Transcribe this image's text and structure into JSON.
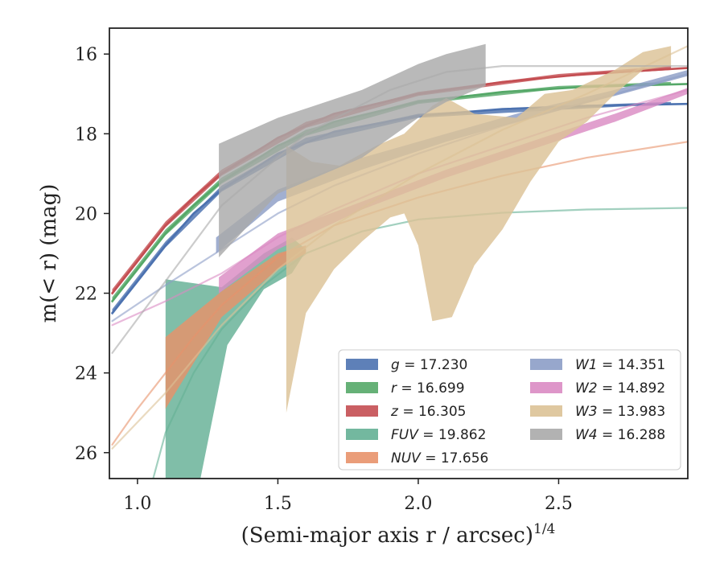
{
  "chart_data": {
    "type": "line",
    "xlabel": "(Semi-major axis r / arcsec)",
    "xlabel_sup": "1/4",
    "ylabel": "m(< r) (mag)",
    "xlim": [
      0.9,
      2.96
    ],
    "ylim": [
      26.65,
      15.35
    ],
    "xticks": [
      1.0,
      1.5,
      2.0,
      2.5
    ],
    "xtick_labels": [
      "1.0",
      "1.5",
      "2.0",
      "2.5"
    ],
    "yticks": [
      16,
      18,
      20,
      22,
      24,
      26
    ],
    "ytick_labels": [
      "16",
      "18",
      "20",
      "22",
      "24",
      "26"
    ],
    "legend_position": "lower-right",
    "series": [
      {
        "name": "g = 17.230",
        "var": "g",
        "val": "17.230",
        "color": "#4c72b0",
        "curve": [
          [
            0.91,
            22.5
          ],
          [
            1.0,
            21.7
          ],
          [
            1.1,
            20.8
          ],
          [
            1.2,
            20.0
          ],
          [
            1.3,
            19.4
          ],
          [
            1.5,
            18.5
          ],
          [
            1.7,
            17.95
          ],
          [
            2.0,
            17.55
          ],
          [
            2.3,
            17.38
          ],
          [
            2.6,
            17.3
          ],
          [
            2.96,
            17.25
          ]
        ],
        "band_upper": [
          [
            0.91,
            22.4
          ],
          [
            1.1,
            20.7
          ],
          [
            1.3,
            19.3
          ],
          [
            1.6,
            18.1
          ],
          [
            2.0,
            17.5
          ],
          [
            2.5,
            17.3
          ],
          [
            2.9,
            17.2
          ]
        ],
        "band_lower": [
          [
            0.91,
            22.55
          ],
          [
            1.1,
            20.85
          ],
          [
            1.3,
            19.45
          ],
          [
            1.6,
            18.25
          ],
          [
            2.0,
            17.6
          ],
          [
            2.5,
            17.4
          ],
          [
            2.9,
            17.25
          ]
        ]
      },
      {
        "name": "r = 16.699",
        "var": "r",
        "val": "16.699",
        "color": "#55a868",
        "curve": [
          [
            0.91,
            22.2
          ],
          [
            1.0,
            21.4
          ],
          [
            1.1,
            20.5
          ],
          [
            1.2,
            19.8
          ],
          [
            1.3,
            19.2
          ],
          [
            1.5,
            18.3
          ],
          [
            1.7,
            17.7
          ],
          [
            2.0,
            17.2
          ],
          [
            2.3,
            16.95
          ],
          [
            2.6,
            16.82
          ],
          [
            2.96,
            16.75
          ]
        ],
        "band_upper": [
          [
            0.91,
            22.1
          ],
          [
            1.1,
            20.4
          ],
          [
            1.3,
            19.1
          ],
          [
            1.6,
            17.9
          ],
          [
            2.0,
            17.15
          ],
          [
            2.5,
            16.8
          ],
          [
            2.9,
            16.7
          ]
        ],
        "band_lower": [
          [
            0.91,
            22.25
          ],
          [
            1.1,
            20.55
          ],
          [
            1.3,
            19.25
          ],
          [
            1.6,
            18.05
          ],
          [
            2.0,
            17.25
          ],
          [
            2.5,
            16.88
          ],
          [
            2.9,
            16.78
          ]
        ]
      },
      {
        "name": "z = 16.305",
        "var": "z",
        "val": "16.305",
        "color": "#c44e52",
        "curve": [
          [
            0.91,
            22.0
          ],
          [
            1.0,
            21.2
          ],
          [
            1.1,
            20.3
          ],
          [
            1.2,
            19.6
          ],
          [
            1.3,
            19.0
          ],
          [
            1.5,
            18.1
          ],
          [
            1.7,
            17.5
          ],
          [
            2.0,
            17.0
          ],
          [
            2.3,
            16.7
          ],
          [
            2.6,
            16.5
          ],
          [
            2.96,
            16.35
          ]
        ],
        "band_upper": [
          [
            0.91,
            21.9
          ],
          [
            1.1,
            20.2
          ],
          [
            1.3,
            18.9
          ],
          [
            1.6,
            17.7
          ],
          [
            2.0,
            16.95
          ],
          [
            2.5,
            16.5
          ],
          [
            2.9,
            16.3
          ]
        ],
        "band_lower": [
          [
            0.91,
            22.05
          ],
          [
            1.1,
            20.35
          ],
          [
            1.3,
            19.05
          ],
          [
            1.6,
            17.85
          ],
          [
            2.0,
            17.05
          ],
          [
            2.5,
            16.58
          ],
          [
            2.9,
            16.4
          ]
        ]
      },
      {
        "name": "FUV = 19.862",
        "var": "FUV",
        "val": "19.862",
        "color": "#64b095",
        "curve": [
          [
            1.05,
            26.8
          ],
          [
            1.1,
            25.5
          ],
          [
            1.2,
            24.0
          ],
          [
            1.3,
            22.9
          ],
          [
            1.45,
            21.8
          ],
          [
            1.6,
            21.0
          ],
          [
            1.8,
            20.45
          ],
          [
            2.0,
            20.15
          ],
          [
            2.3,
            19.98
          ],
          [
            2.6,
            19.9
          ],
          [
            2.96,
            19.86
          ]
        ],
        "band_upper": [
          [
            1.1,
            21.65
          ],
          [
            1.3,
            21.85
          ],
          [
            1.45,
            21.0
          ],
          [
            1.55,
            20.6
          ],
          [
            1.6,
            20.9
          ]
        ],
        "band_lower": [
          [
            1.1,
            26.8
          ],
          [
            1.22,
            26.8
          ],
          [
            1.32,
            23.3
          ],
          [
            1.45,
            21.9
          ],
          [
            1.55,
            21.5
          ],
          [
            1.6,
            20.95
          ]
        ]
      },
      {
        "name": "NUV = 17.656",
        "var": "NUV",
        "val": "17.656",
        "color": "#e8926a",
        "curve": [
          [
            0.91,
            25.8
          ],
          [
            1.0,
            24.9
          ],
          [
            1.1,
            24.0
          ],
          [
            1.2,
            23.1
          ],
          [
            1.3,
            22.3
          ],
          [
            1.5,
            21.1
          ],
          [
            1.7,
            20.3
          ],
          [
            2.0,
            19.6
          ],
          [
            2.3,
            19.05
          ],
          [
            2.6,
            18.6
          ],
          [
            2.96,
            18.2
          ]
        ],
        "band_upper": [
          [
            1.1,
            23.1
          ],
          [
            1.3,
            21.95
          ],
          [
            1.5,
            21.0
          ],
          [
            1.6,
            20.8
          ]
        ],
        "band_lower": [
          [
            1.1,
            24.9
          ],
          [
            1.3,
            22.6
          ],
          [
            1.5,
            21.4
          ],
          [
            1.6,
            21.0
          ]
        ]
      },
      {
        "name": "W1 = 14.351",
        "var": "W1",
        "val": "14.351",
        "color": "#8c9dc6",
        "curve": [
          [
            0.91,
            22.7
          ],
          [
            1.1,
            21.8
          ],
          [
            1.3,
            20.9
          ],
          [
            1.5,
            20.0
          ],
          [
            1.7,
            19.3
          ],
          [
            2.0,
            18.5
          ],
          [
            2.3,
            17.8
          ],
          [
            2.6,
            17.2
          ],
          [
            2.96,
            16.5
          ]
        ],
        "band_upper": [
          [
            1.28,
            20.6
          ],
          [
            1.5,
            19.4
          ],
          [
            1.8,
            18.6
          ],
          [
            2.1,
            18.0
          ],
          [
            2.4,
            17.4
          ],
          [
            2.7,
            16.9
          ],
          [
            2.96,
            16.4
          ]
        ],
        "band_lower": [
          [
            1.28,
            21.0
          ],
          [
            1.5,
            19.7
          ],
          [
            1.8,
            18.9
          ],
          [
            2.1,
            18.2
          ],
          [
            2.4,
            17.6
          ],
          [
            2.7,
            17.05
          ],
          [
            2.96,
            16.55
          ]
        ]
      },
      {
        "name": "W2 = 14.892",
        "var": "W2",
        "val": "14.892",
        "color": "#da8bc3",
        "curve": [
          [
            0.91,
            22.8
          ],
          [
            1.1,
            22.2
          ],
          [
            1.3,
            21.5
          ],
          [
            1.5,
            20.6
          ],
          [
            1.7,
            19.9
          ],
          [
            2.0,
            19.0
          ],
          [
            2.3,
            18.3
          ],
          [
            2.6,
            17.6
          ],
          [
            2.96,
            16.9
          ]
        ],
        "band_upper": [
          [
            1.29,
            21.6
          ],
          [
            1.5,
            20.5
          ],
          [
            1.8,
            19.7
          ],
          [
            2.1,
            18.9
          ],
          [
            2.4,
            18.2
          ],
          [
            2.7,
            17.5
          ],
          [
            2.96,
            16.85
          ]
        ],
        "band_lower": [
          [
            1.29,
            22.0
          ],
          [
            1.5,
            20.9
          ],
          [
            1.8,
            19.9
          ],
          [
            2.1,
            19.1
          ],
          [
            2.4,
            18.4
          ],
          [
            2.7,
            17.7
          ],
          [
            2.96,
            17.0
          ]
        ]
      },
      {
        "name": "W3 = 13.983",
        "var": "W3",
        "val": "13.983",
        "color": "#dcc296",
        "curve": [
          [
            0.91,
            25.9
          ],
          [
            1.1,
            24.5
          ],
          [
            1.3,
            22.8
          ],
          [
            1.5,
            21.4
          ],
          [
            1.7,
            20.3
          ],
          [
            2.0,
            19.0
          ],
          [
            2.3,
            17.9
          ],
          [
            2.6,
            17.0
          ],
          [
            2.96,
            15.8
          ]
        ],
        "band_upper": [
          [
            1.53,
            18.3
          ],
          [
            1.62,
            18.7
          ],
          [
            1.72,
            18.8
          ],
          [
            1.85,
            18.3
          ],
          [
            1.95,
            18.0
          ],
          [
            2.05,
            17.3
          ],
          [
            2.1,
            17.1
          ],
          [
            2.2,
            17.5
          ],
          [
            2.35,
            17.6
          ],
          [
            2.45,
            17.0
          ],
          [
            2.55,
            16.9
          ],
          [
            2.7,
            16.4
          ],
          [
            2.8,
            15.95
          ],
          [
            2.9,
            15.8
          ]
        ],
        "band_lower": [
          [
            1.53,
            25.0
          ],
          [
            1.6,
            22.5
          ],
          [
            1.7,
            21.4
          ],
          [
            1.8,
            20.7
          ],
          [
            1.9,
            20.1
          ],
          [
            1.95,
            20.0
          ],
          [
            2.0,
            20.8
          ],
          [
            2.05,
            22.7
          ],
          [
            2.12,
            22.6
          ],
          [
            2.2,
            21.3
          ],
          [
            2.3,
            20.4
          ],
          [
            2.4,
            19.2
          ],
          [
            2.5,
            18.2
          ],
          [
            2.6,
            17.7
          ],
          [
            2.7,
            17.0
          ],
          [
            2.8,
            16.4
          ],
          [
            2.9,
            16.3
          ]
        ]
      },
      {
        "name": "W4 = 16.288",
        "var": "W4",
        "val": "16.288",
        "color": "#aaaaaa",
        "curve": [
          [
            0.91,
            23.5
          ],
          [
            1.3,
            19.8
          ],
          [
            1.6,
            18.0
          ],
          [
            1.9,
            16.9
          ],
          [
            2.1,
            16.45
          ],
          [
            2.3,
            16.3
          ],
          [
            2.96,
            16.3
          ]
        ],
        "band_upper": [
          [
            1.29,
            18.25
          ],
          [
            1.5,
            17.6
          ],
          [
            1.8,
            16.9
          ],
          [
            2.0,
            16.25
          ],
          [
            2.1,
            16.0
          ],
          [
            2.24,
            15.75
          ]
        ],
        "band_lower": [
          [
            1.29,
            21.1
          ],
          [
            1.5,
            19.5
          ],
          [
            1.8,
            18.6
          ],
          [
            2.0,
            17.6
          ],
          [
            2.1,
            17.2
          ],
          [
            2.24,
            16.8
          ]
        ]
      }
    ]
  }
}
